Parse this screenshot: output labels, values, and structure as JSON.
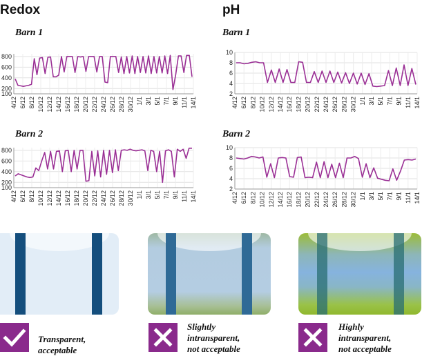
{
  "headings": {
    "redox": "Redox",
    "ph": "pH"
  },
  "barns": {
    "barn1": "Barn 1",
    "barn2": "Barn 2"
  },
  "line_color": "#9a2f95",
  "chart_data": [
    {
      "type": "line",
      "panel": "Redox Barn 1",
      "title": "",
      "x_tick_labels": [
        "4/12",
        "6/12",
        "8/12",
        "10/12",
        "12/12",
        "14/12",
        "16/12",
        "18/12",
        "20/12",
        "22/12",
        "24/12",
        "26/12",
        "28/12",
        "30/12",
        "1/1",
        "3/1",
        "5/1",
        "7/1",
        "9/1",
        "11/1",
        "14/1"
      ],
      "y_tick_labels": [
        "100",
        "200",
        "400",
        "600",
        "800"
      ],
      "ylim": [
        100,
        850
      ],
      "grid": true,
      "series": [
        {
          "values": [
            380,
            260,
            250,
            240,
            250,
            260,
            280,
            760,
            460,
            770,
            780,
            480,
            785,
            790,
            420,
            420,
            450,
            800,
            510,
            800,
            800,
            800,
            500,
            800,
            790,
            800,
            520,
            800,
            800,
            800,
            510,
            800,
            800,
            320,
            310,
            800,
            800,
            800,
            500,
            790,
            480,
            800,
            490,
            810,
            480,
            800,
            500,
            800,
            490,
            810,
            480,
            800,
            490,
            800,
            490,
            810,
            480,
            820,
            180,
            460,
            810,
            810,
            500,
            820,
            820,
            420
          ]
        }
      ]
    },
    {
      "type": "line",
      "panel": "Redox Barn 2",
      "title": "",
      "x_tick_labels": [
        "4/12",
        "6/12",
        "8/12",
        "10/12",
        "12/12",
        "14/12",
        "16/12",
        "18/12",
        "20/12",
        "22/12",
        "24/12",
        "26/12",
        "28/12",
        "30/12",
        "1/1",
        "3/1",
        "5/1",
        "7/1",
        "9/1",
        "11/1",
        "14/1"
      ],
      "y_tick_labels": [
        "100",
        "200",
        "400",
        "600",
        "800"
      ],
      "ylim": [
        100,
        850
      ],
      "grid": true,
      "series": [
        {
          "values": [
            320,
            360,
            340,
            320,
            300,
            290,
            300,
            470,
            420,
            600,
            760,
            450,
            780,
            450,
            780,
            790,
            400,
            790,
            800,
            400,
            800,
            450,
            800,
            800,
            220,
            230,
            780,
            320,
            790,
            300,
            800,
            350,
            800,
            380,
            810,
            420,
            800,
            810,
            800,
            820,
            800,
            790,
            800,
            810,
            790,
            420,
            800,
            780,
            400,
            780,
            200,
            790,
            810,
            780,
            300,
            820,
            780,
            820,
            650,
            840,
            840
          ]
        }
      ]
    },
    {
      "type": "line",
      "panel": "pH Barn 1",
      "title": "",
      "x_tick_labels": [
        "4/12",
        "6/12",
        "8/12",
        "10/12",
        "12/12",
        "14/12",
        "16/12",
        "18/12",
        "20/12",
        "22/12",
        "24/12",
        "26/12",
        "28/12",
        "30/12",
        "1/1",
        "3/1",
        "5/1",
        "7/1",
        "9/1",
        "11/1",
        "14/1"
      ],
      "y_tick_labels": [
        "2",
        "4",
        "6",
        "8",
        "10"
      ],
      "ylim": [
        2,
        10
      ],
      "grid": true,
      "series": [
        {
          "values": [
            8.0,
            8.0,
            7.8,
            7.9,
            8.1,
            8.2,
            8.0,
            8.0,
            4.2,
            6.6,
            4.2,
            6.8,
            4.2,
            6.7,
            4.2,
            4.2,
            8.2,
            8.1,
            4.2,
            4.2,
            6.3,
            4.2,
            6.4,
            4.2,
            6.4,
            4.2,
            6.2,
            4.1,
            6.1,
            4.0,
            6.0,
            3.9,
            6.0,
            3.8,
            5.9,
            3.5,
            3.4,
            3.5,
            3.6,
            6.5,
            3.6,
            7.0,
            3.6,
            7.6,
            3.6,
            6.9,
            3.8
          ]
        }
      ]
    },
    {
      "type": "line",
      "panel": "pH Barn 2",
      "title": "",
      "x_tick_labels": [
        "4/12",
        "6/12",
        "8/12",
        "10/12",
        "12/12",
        "14/12",
        "16/12",
        "18/12",
        "20/12",
        "22/12",
        "24/12",
        "26/12",
        "28/12",
        "30/12",
        "1/1",
        "3/1",
        "5/1",
        "7/1",
        "9/1",
        "11/1",
        "14/1"
      ],
      "y_tick_labels": [
        "2",
        "4",
        "6",
        "8",
        "10"
      ],
      "ylim": [
        2,
        10
      ],
      "grid": true,
      "series": [
        {
          "values": [
            8.0,
            7.9,
            7.8,
            8.0,
            8.3,
            8.2,
            8.0,
            8.2,
            4.3,
            6.9,
            4.2,
            8.0,
            8.1,
            8.0,
            4.4,
            4.3,
            8.1,
            8.2,
            4.2,
            4.3,
            4.2,
            7.2,
            4.2,
            7.3,
            4.2,
            6.8,
            4.2,
            7.0,
            4.2,
            8.0,
            8.0,
            8.3,
            7.9,
            4.3,
            6.9,
            4.2,
            6.1,
            4.1,
            3.9,
            3.7,
            3.6,
            5.9,
            3.7,
            5.5,
            7.6,
            7.7,
            7.6,
            7.8
          ]
        }
      ]
    }
  ],
  "panels": [
    {
      "caption": [
        "Transparent,",
        "acceptable"
      ],
      "badge": "check-icon"
    },
    {
      "caption": [
        "Slightly",
        "intransparent,",
        "not acceptable"
      ],
      "badge": "cross-icon"
    },
    {
      "caption": [
        "Highly",
        "intransparent,",
        "not acceptable"
      ],
      "badge": "cross-icon"
    }
  ]
}
